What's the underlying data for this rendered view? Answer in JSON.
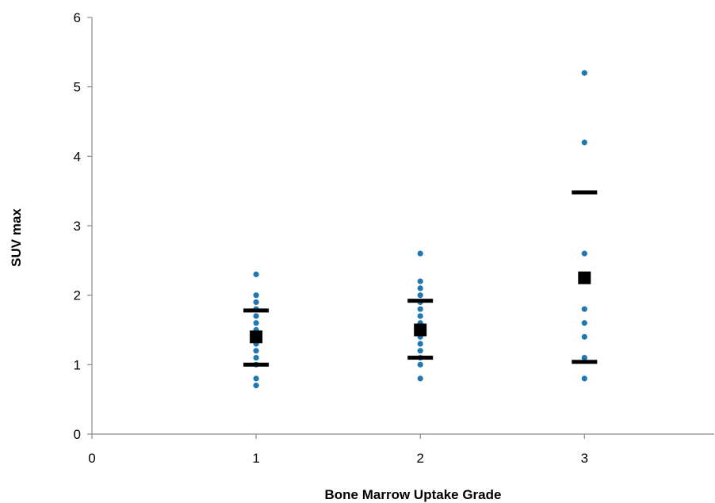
{
  "chart_data": {
    "type": "scatter",
    "title": "",
    "xlabel": "Bone Marrow Uptake Grade",
    "ylabel": "SUV max",
    "xlim": [
      0,
      3.8
    ],
    "ylim": [
      0,
      6
    ],
    "xticks": [
      0,
      1,
      2,
      3
    ],
    "yticks": [
      0,
      1,
      2,
      3,
      4,
      5,
      6
    ],
    "grid": false,
    "legend": "none",
    "colors": {
      "points": "#1f77b4",
      "mean": "#000000",
      "bars": "#000000",
      "axis": "#8c8c8c"
    },
    "series": [
      {
        "marker": "dot",
        "points": [
          {
            "x": 1,
            "y": 2.3
          },
          {
            "x": 1,
            "y": 2.0
          },
          {
            "x": 1,
            "y": 1.9
          },
          {
            "x": 1,
            "y": 1.8
          },
          {
            "x": 1,
            "y": 1.7
          },
          {
            "x": 1,
            "y": 1.6
          },
          {
            "x": 1,
            "y": 1.5
          },
          {
            "x": 1,
            "y": 1.4
          },
          {
            "x": 1,
            "y": 1.3
          },
          {
            "x": 1,
            "y": 1.2
          },
          {
            "x": 1,
            "y": 1.1
          },
          {
            "x": 1,
            "y": 1.0
          },
          {
            "x": 1,
            "y": 0.8
          },
          {
            "x": 1,
            "y": 0.7
          },
          {
            "x": 2,
            "y": 2.6
          },
          {
            "x": 2,
            "y": 2.2
          },
          {
            "x": 2,
            "y": 2.1
          },
          {
            "x": 2,
            "y": 2.0
          },
          {
            "x": 2,
            "y": 1.9
          },
          {
            "x": 2,
            "y": 1.8
          },
          {
            "x": 2,
            "y": 1.7
          },
          {
            "x": 2,
            "y": 1.6
          },
          {
            "x": 2,
            "y": 1.5
          },
          {
            "x": 2,
            "y": 1.4
          },
          {
            "x": 2,
            "y": 1.3
          },
          {
            "x": 2,
            "y": 1.2
          },
          {
            "x": 2,
            "y": 1.1
          },
          {
            "x": 2,
            "y": 1.0
          },
          {
            "x": 2,
            "y": 0.8
          },
          {
            "x": 3,
            "y": 5.2
          },
          {
            "x": 3,
            "y": 4.2
          },
          {
            "x": 3,
            "y": 2.6
          },
          {
            "x": 3,
            "y": 2.2
          },
          {
            "x": 3,
            "y": 1.8
          },
          {
            "x": 3,
            "y": 1.6
          },
          {
            "x": 3,
            "y": 1.4
          },
          {
            "x": 3,
            "y": 1.1
          },
          {
            "x": 3,
            "y": 0.8
          }
        ]
      },
      {
        "marker": "square",
        "points": [
          {
            "x": 1,
            "y": 1.4
          },
          {
            "x": 2,
            "y": 1.5
          },
          {
            "x": 3,
            "y": 2.25
          }
        ]
      },
      {
        "marker": "bar",
        "points": [
          {
            "x": 1,
            "y": 1.78
          },
          {
            "x": 1,
            "y": 1.0
          },
          {
            "x": 2,
            "y": 1.92
          },
          {
            "x": 2,
            "y": 1.1
          },
          {
            "x": 3,
            "y": 3.48
          },
          {
            "x": 3,
            "y": 1.04
          }
        ]
      }
    ]
  }
}
